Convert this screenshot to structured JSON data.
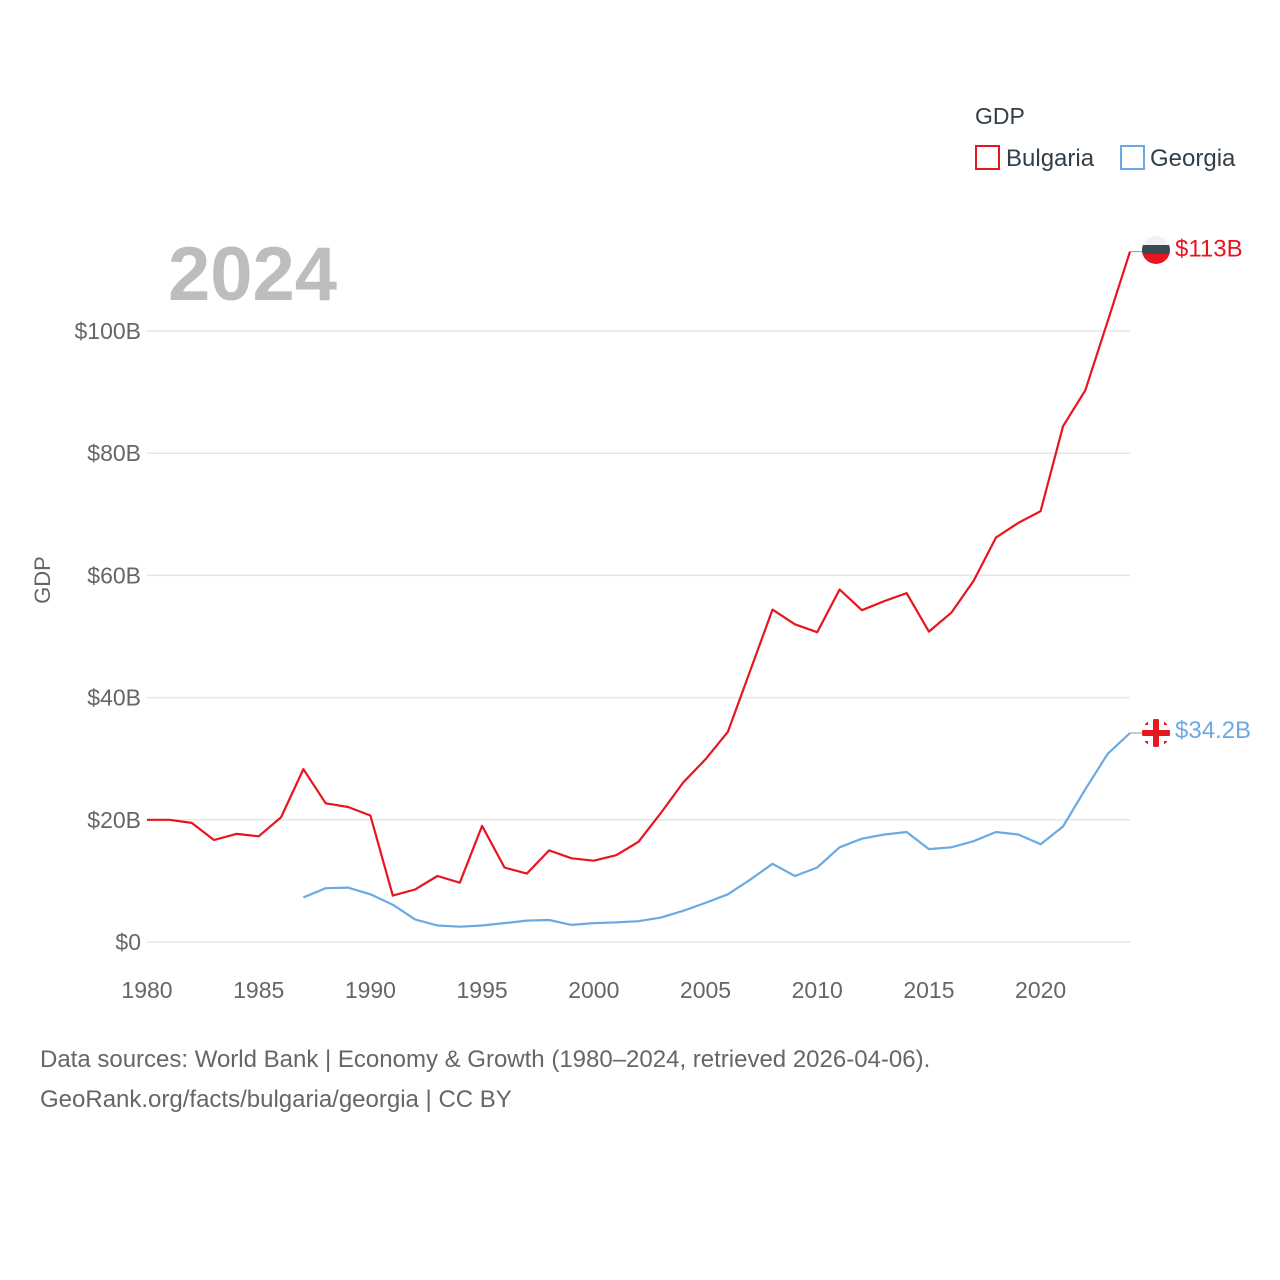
{
  "chart_data": {
    "type": "line",
    "current_year": "2024",
    "ylabel": "GDP",
    "xlim": [
      1980,
      2024
    ],
    "ylim": [
      0,
      113
    ],
    "x_ticks": [
      1980,
      1985,
      1990,
      1995,
      2000,
      2005,
      2010,
      2015,
      2020
    ],
    "y_ticks": [
      0,
      20,
      40,
      60,
      80,
      100
    ],
    "y_tick_labels": [
      "$0",
      "$20B",
      "$40B",
      "$60B",
      "$80B",
      "$100B"
    ],
    "legend": {
      "title": "GDP",
      "position": "top-right"
    },
    "series": [
      {
        "name": "Bulgaria",
        "color": "#e8141e",
        "end_label": "$113B",
        "x": [
          1980,
          1981,
          1982,
          1983,
          1984,
          1985,
          1986,
          1987,
          1988,
          1989,
          1990,
          1991,
          1992,
          1993,
          1994,
          1995,
          1996,
          1997,
          1998,
          1999,
          2000,
          2001,
          2002,
          2003,
          2004,
          2005,
          2006,
          2007,
          2008,
          2009,
          2010,
          2011,
          2012,
          2013,
          2014,
          2015,
          2016,
          2017,
          2018,
          2019,
          2020,
          2021,
          2022,
          2023,
          2024
        ],
        "values": [
          20.0,
          20.0,
          19.5,
          16.7,
          17.7,
          17.3,
          20.4,
          28.3,
          22.7,
          22.1,
          20.7,
          7.6,
          8.6,
          10.8,
          9.7,
          19.0,
          12.2,
          11.2,
          15.0,
          13.7,
          13.3,
          14.2,
          16.4,
          21.1,
          26.1,
          29.9,
          34.4,
          44.4,
          54.4,
          52.0,
          50.7,
          57.7,
          54.3,
          55.8,
          57.1,
          50.8,
          53.9,
          59.1,
          66.2,
          68.6,
          70.5,
          84.4,
          90.3,
          101.6,
          113.0
        ]
      },
      {
        "name": "Georgia",
        "color": "#6aaae4",
        "end_label": "$34.2B",
        "x": [
          1987,
          1988,
          1989,
          1990,
          1991,
          1992,
          1993,
          1994,
          1995,
          1996,
          1997,
          1998,
          1999,
          2000,
          2001,
          2002,
          2003,
          2004,
          2005,
          2006,
          2007,
          2008,
          2009,
          2010,
          2011,
          2012,
          2013,
          2014,
          2015,
          2016,
          2017,
          2018,
          2019,
          2020,
          2021,
          2022,
          2023,
          2024
        ],
        "values": [
          7.3,
          8.8,
          8.9,
          7.8,
          6.1,
          3.7,
          2.7,
          2.5,
          2.7,
          3.1,
          3.5,
          3.6,
          2.8,
          3.1,
          3.2,
          3.4,
          4.0,
          5.1,
          6.4,
          7.8,
          10.2,
          12.8,
          10.8,
          12.2,
          15.5,
          16.9,
          17.6,
          18.0,
          15.2,
          15.5,
          16.5,
          18.0,
          17.6,
          16.0,
          18.9,
          25.0,
          30.8,
          34.2
        ]
      }
    ]
  },
  "footer": {
    "line1": "Data sources: World Bank | Economy & Growth (1980–2024, retrieved 2026-04-06).",
    "line2": "GeoRank.org/facts/bulgaria/georgia | CC BY"
  }
}
